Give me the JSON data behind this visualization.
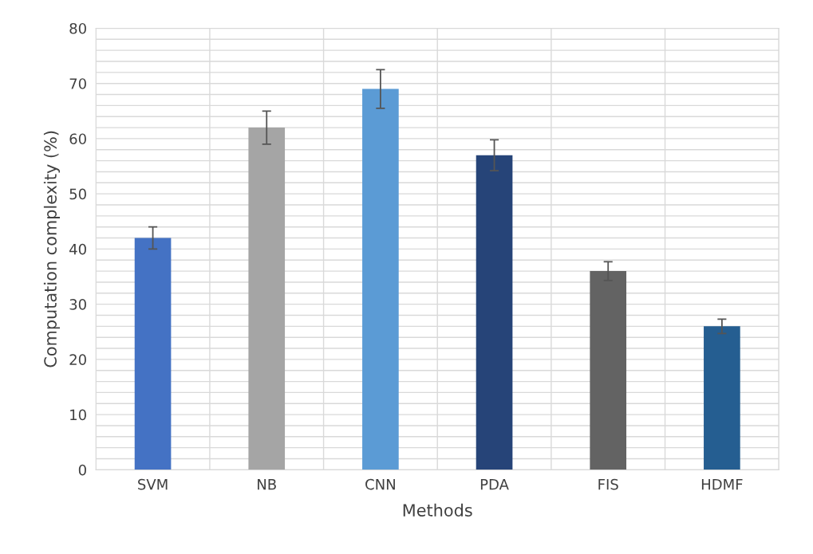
{
  "chart_data": {
    "type": "bar",
    "xlabel": "Methods",
    "ylabel": "Computation complexity (%)",
    "categories": [
      "SVM",
      "NB",
      "CNN",
      "PDA",
      "FIS",
      "HDMF"
    ],
    "values": [
      42,
      62,
      69,
      57,
      36,
      26
    ],
    "errors": [
      2,
      3,
      3.5,
      2.8,
      1.7,
      1.3
    ],
    "colors": [
      "#4472c4",
      "#a5a5a5",
      "#5b9bd5",
      "#264478",
      "#636363",
      "#255e91"
    ],
    "ylim": [
      0,
      80
    ],
    "yticks": [
      0,
      {
        "value": 2,
        "label": null
      },
      {
        "value": 4,
        "label": null
      },
      {
        "value": 6,
        "label": null
      },
      {
        "value": 8,
        "label": null
      },
      10,
      {
        "value": 12,
        "label": null
      },
      {
        "value": 14,
        "label": null
      },
      {
        "value": 16,
        "label": null
      },
      {
        "value": 18,
        "label": null
      },
      20,
      {
        "value": 22,
        "label": null
      },
      {
        "value": 24,
        "label": null
      },
      {
        "value": 26,
        "label": null
      },
      {
        "value": 28,
        "label": null
      },
      30,
      {
        "value": 32,
        "label": null
      },
      {
        "value": 34,
        "label": null
      },
      {
        "value": 36,
        "label": null
      },
      {
        "value": 38,
        "label": null
      },
      40,
      {
        "value": 42,
        "label": null
      },
      {
        "value": 44,
        "label": null
      },
      {
        "value": 46,
        "label": null
      },
      {
        "value": 48,
        "label": null
      },
      50,
      {
        "value": 52,
        "label": null
      },
      {
        "value": 54,
        "label": null
      },
      {
        "value": 56,
        "label": null
      },
      {
        "value": 58,
        "label": null
      },
      60,
      {
        "value": 62,
        "label": null
      },
      {
        "value": 64,
        "label": null
      },
      {
        "value": 66,
        "label": null
      },
      {
        "value": 68,
        "label": null
      },
      70,
      {
        "value": 72,
        "label": null
      },
      {
        "value": 74,
        "label": null
      },
      {
        "value": 76,
        "label": null
      },
      {
        "value": 78,
        "label": null
      },
      80
    ],
    "grid": true
  }
}
